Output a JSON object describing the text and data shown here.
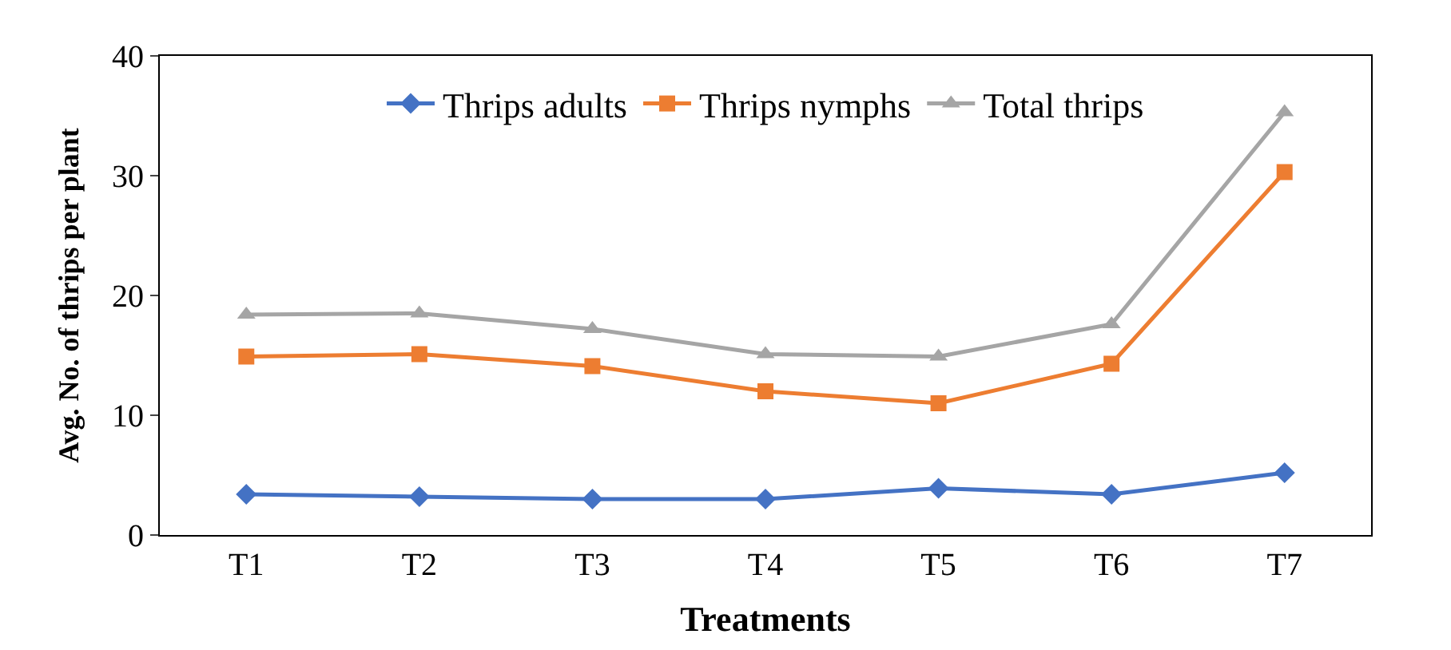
{
  "chart_data": {
    "type": "line",
    "xlabel": "Treatments",
    "ylabel": "Avg. No. of thrips per plant",
    "categories": [
      "T1",
      "T2",
      "T3",
      "T4",
      "T5",
      "T6",
      "T7"
    ],
    "series": [
      {
        "name": "Thrips adults",
        "color": "#4472c4",
        "marker": "diamond",
        "values": [
          3.4,
          3.2,
          3.0,
          3.0,
          3.9,
          3.4,
          5.2
        ]
      },
      {
        "name": "Thrips nymphs",
        "color": "#ed7d31",
        "marker": "square",
        "values": [
          14.9,
          15.1,
          14.1,
          12.0,
          11.0,
          14.3,
          30.3
        ]
      },
      {
        "name": "Total thrips",
        "color": "#a5a5a5",
        "marker": "triangle",
        "values": [
          18.4,
          18.5,
          17.2,
          15.1,
          14.9,
          17.6,
          35.3
        ]
      }
    ],
    "ylim": [
      0,
      40
    ],
    "yticks": [
      0,
      10,
      20,
      30,
      40
    ],
    "grid": false,
    "legend": "top",
    "line_style": "solid"
  }
}
